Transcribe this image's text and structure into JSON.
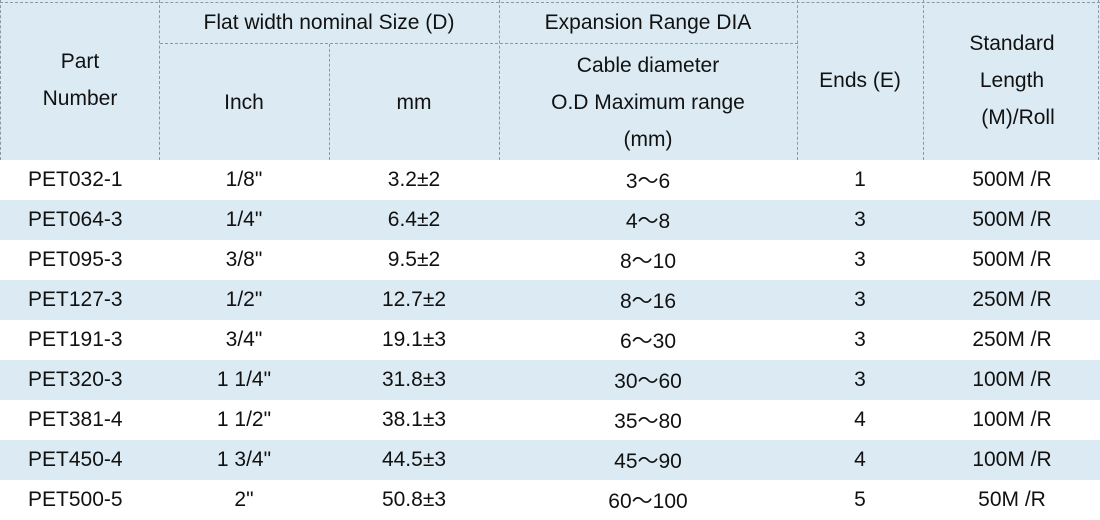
{
  "header": {
    "part_number": [
      "Part",
      "Number"
    ],
    "flat_width": "Flat width nominal Size (D)",
    "inch": "Inch",
    "mm": "mm",
    "expansion": "Expansion Range DIA",
    "cable": [
      "Cable diameter",
      "O.D Maximum range",
      "(mm)"
    ],
    "ends": "Ends (E)",
    "standard_length": [
      "Standard",
      "Length",
      "(M)/Roll"
    ]
  },
  "colors": {
    "header_bg": "#dcebf3",
    "alt_row_bg": "#dcebf3",
    "divider": "#8d98a2"
  },
  "rows": [
    {
      "part": "PET032-1",
      "inch": "1/8\"",
      "mm": "3.2±2",
      "range": "3～6",
      "ends": "1",
      "length": "500M /R"
    },
    {
      "part": "PET064-3",
      "inch": "1/4\"",
      "mm": "6.4±2",
      "range": "4～8",
      "ends": "3",
      "length": "500M /R"
    },
    {
      "part": "PET095-3",
      "inch": "3/8\"",
      "mm": "9.5±2",
      "range": "8～10",
      "ends": "3",
      "length": "500M /R"
    },
    {
      "part": "PET127-3",
      "inch": "1/2\"",
      "mm": "12.7±2",
      "range": "8～16",
      "ends": "3",
      "length": "250M /R"
    },
    {
      "part": "PET191-3",
      "inch": "3/4\"",
      "mm": "19.1±3",
      "range": "6～30",
      "ends": "3",
      "length": "250M /R"
    },
    {
      "part": "PET320-3",
      "inch": "1 1/4\"",
      "mm": "31.8±3",
      "range": "30～60",
      "ends": "3",
      "length": "100M /R"
    },
    {
      "part": "PET381-4",
      "inch": "1 1/2\"",
      "mm": "38.1±3",
      "range": "35～80",
      "ends": "4",
      "length": "100M /R"
    },
    {
      "part": "PET450-4",
      "inch": "1 3/4\"",
      "mm": "44.5±3",
      "range": "45～90",
      "ends": "4",
      "length": "100M /R"
    },
    {
      "part": "PET500-5",
      "inch": "2\"",
      "mm": "50.8±3",
      "range": "60～100",
      "ends": "5",
      "length": "50M /R"
    }
  ]
}
